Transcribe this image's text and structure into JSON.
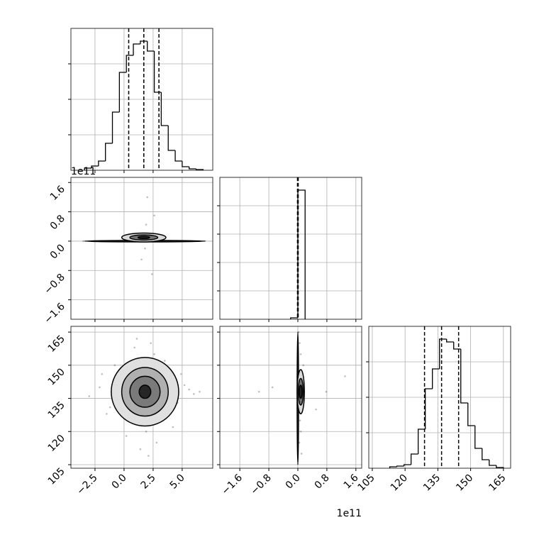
{
  "chart_data": [
    {
      "type": "histogram",
      "bins": [
        -3.4,
        -2.8,
        -2.2,
        -1.6,
        -1.0,
        -0.4,
        0.2,
        0.8,
        1.4,
        2.0,
        2.6,
        3.2,
        3.8,
        4.4,
        5.0,
        5.6,
        6.2,
        6.8
      ],
      "values": [
        3,
        6,
        13,
        38,
        82,
        138,
        162,
        178,
        182,
        168,
        110,
        63,
        28,
        13,
        5,
        2,
        1
      ],
      "color": "#000000",
      "quantiles": [
        0.4,
        1.7,
        3.0
      ],
      "xlim": [
        -4.57,
        7.63
      ],
      "ylim": [
        0,
        200
      ],
      "xticks": [
        -2.5,
        0,
        2.5,
        5
      ],
      "yticks": [
        50,
        100,
        150
      ],
      "grid": true
    },
    {
      "type": "hist2d",
      "xlim": [
        -4.57,
        7.63
      ],
      "ylim": [
        -2.13,
        1.74
      ],
      "grid": true,
      "xticks": [
        -2.5,
        0,
        2.5,
        5
      ],
      "yticks": [
        {
          "value": 1.6,
          "label": "1.6"
        },
        {
          "value": 0.8,
          "label": "0.8"
        },
        {
          "value": 0,
          "label": "0.0"
        },
        {
          "value": -0.8,
          "label": "−0.8"
        },
        {
          "value": -1.6,
          "label": "−1.6"
        }
      ],
      "y_offset_label": "1e11",
      "point_color": "#000000",
      "points": {
        "x": [
          -3.5,
          -2.0,
          -0.5,
          0.8,
          1.6,
          2.0,
          2.4,
          3.5,
          4.8,
          6.5,
          1.9,
          2.6,
          1.5,
          1.8,
          2.0
        ],
        "y": [
          0,
          0,
          0,
          0,
          0.05,
          1.2,
          -0.9,
          0,
          0,
          0,
          0.45,
          0.7,
          -0.5,
          -0.2,
          0.2
        ]
      },
      "contours": [
        {
          "center": [
            1.8,
            0
          ],
          "radius": [
            5.2,
            0.02
          ],
          "fill": "#404040"
        },
        {
          "center": [
            1.7,
            0.1
          ],
          "radius": [
            1.9,
            0.12
          ],
          "fill": "#d9d9d9"
        },
        {
          "center": [
            1.7,
            0.1
          ],
          "radius": [
            1.2,
            0.07
          ],
          "fill": "#737373"
        },
        {
          "center": [
            1.7,
            0.1
          ],
          "radius": [
            0.5,
            0.03
          ],
          "fill": "#262626"
        }
      ]
    },
    {
      "type": "histogram",
      "bins": [
        -0.2,
        0.0,
        0.2
      ],
      "values": [
        2,
        182
      ],
      "color": "#000000",
      "quantiles": [
        -0.01,
        0.0,
        0.01
      ],
      "xlim": [
        -2.15,
        1.76
      ],
      "ylim": [
        0,
        200
      ],
      "xticks": [
        -1.6,
        -0.8,
        0,
        0.8,
        1.6
      ],
      "yticks": [
        40,
        80,
        120,
        160
      ],
      "grid": true
    },
    {
      "type": "hist2d",
      "xlim": [
        -4.57,
        7.63
      ],
      "ylim": [
        103.4,
        167.6
      ],
      "grid": true,
      "xticks": [
        {
          "value": -2.5,
          "label": "−2.5"
        },
        {
          "value": 0,
          "label": "0.0"
        },
        {
          "value": 2.5,
          "label": "2.5"
        },
        {
          "value": 5,
          "label": "5.0"
        }
      ],
      "yticks": [
        105,
        120,
        135,
        150,
        165
      ],
      "point_color": "#000000",
      "points": {
        "x": [
          -2.1,
          -1.5,
          -0.8,
          0.2,
          0.9,
          1.4,
          2.3,
          3.1,
          3.8,
          4.6,
          5.2,
          6.0,
          -3.0,
          -1.9,
          0.5,
          1.1,
          2.8,
          3.5,
          4.2,
          5.6,
          -0.3,
          1.9,
          2.6,
          0.0,
          3.3,
          -1.2,
          4.9,
          2.1,
          1.0,
          6.5
        ],
        "y": [
          140,
          128,
          150,
          118,
          158,
          112,
          160,
          125,
          147,
          133,
          141,
          137,
          136,
          146,
          130,
          162,
          115,
          152,
          122,
          139,
          134,
          120,
          155,
          144,
          127,
          131,
          146,
          109,
          142,
          138
        ]
      },
      "contours": [
        {
          "center": [
            1.8,
            138
          ],
          "radius": [
            2.9,
            15.5
          ],
          "fill": "#e0e0e0"
        },
        {
          "center": [
            1.8,
            138
          ],
          "radius": [
            2.0,
            11
          ],
          "fill": "#b0b0b0"
        },
        {
          "center": [
            1.8,
            138
          ],
          "radius": [
            1.3,
            7
          ],
          "fill": "#7a7a7a"
        },
        {
          "center": [
            1.8,
            138
          ],
          "radius": [
            0.5,
            3
          ],
          "fill": "#262626"
        }
      ]
    },
    {
      "type": "hist2d",
      "xlim": [
        -2.15,
        1.76
      ],
      "ylim": [
        103.4,
        167.6
      ],
      "grid": true,
      "xticks": [
        {
          "value": -1.6,
          "label": "−1.6"
        },
        {
          "value": -0.8,
          "label": "−0.8"
        },
        {
          "value": 0,
          "label": "0.0"
        },
        {
          "value": 0.8,
          "label": "0.8"
        },
        {
          "value": 1.6,
          "label": "1.6"
        }
      ],
      "yticks": [
        105,
        120,
        135,
        150,
        165
      ],
      "x_offset_label": "1e11",
      "point_color": "#000000",
      "points": {
        "x": [
          0.02,
          0.05,
          0.1,
          0.15,
          -0.7,
          0.5,
          1.3,
          0.08,
          0.08,
          0.06,
          0.12,
          0.04,
          0.78,
          -1.07,
          0.1
        ],
        "y": [
          165,
          160,
          110,
          150,
          140,
          130,
          145,
          120,
          155,
          125,
          145,
          115,
          138,
          138,
          136
        ]
      },
      "contours": [
        {
          "center": [
            0.0,
            135
          ],
          "radius": [
            0.02,
            30
          ],
          "fill": "#404040"
        },
        {
          "center": [
            0.08,
            138
          ],
          "radius": [
            0.1,
            10
          ],
          "fill": "#d9d9d9"
        },
        {
          "center": [
            0.08,
            138
          ],
          "radius": [
            0.07,
            6
          ],
          "fill": "#737373"
        },
        {
          "center": [
            0.08,
            138
          ],
          "radius": [
            0.04,
            3
          ],
          "fill": "#262626"
        }
      ]
    },
    {
      "type": "histogram",
      "bins": [
        113,
        116.25,
        119.5,
        122.75,
        126,
        129.25,
        132.5,
        135.75,
        139,
        142.25,
        145.5,
        148.75,
        152,
        155.25,
        158.5,
        161.75,
        165
      ],
      "values": [
        2,
        3,
        5,
        20,
        55,
        112,
        140,
        182,
        178,
        168,
        92,
        60,
        28,
        12,
        4,
        1
      ],
      "color": "#000000",
      "quantiles": [
        128.9,
        136.7,
        144.5
      ],
      "xlim": [
        103.4,
        168.3
      ],
      "ylim": [
        0,
        200
      ],
      "xticks": [
        105,
        120,
        135,
        150,
        165
      ],
      "yticks": [
        50,
        100,
        150
      ],
      "grid": true,
      "xtick_labels": true
    }
  ]
}
